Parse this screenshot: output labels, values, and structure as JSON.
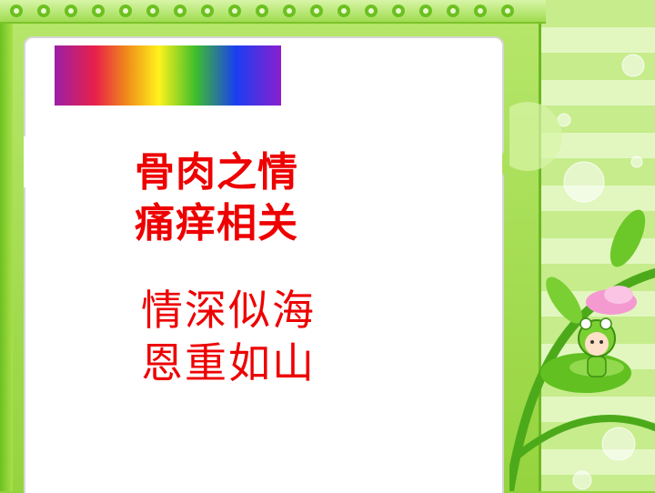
{
  "slide": {
    "heading_lines": [
      "骨肉之情",
      "痛痒相关"
    ],
    "sub_lines": [
      "情深似海",
      "恩重如山"
    ]
  },
  "colors": {
    "text": "#ee0000",
    "frame_green": "#8fd43a",
    "card": "#ffffff"
  },
  "decoration": {
    "rainbow_bar": "rainbow-gradient",
    "character": "frog-hat-girl-icon",
    "flower": "pink-flower-icon",
    "vine": "green-vine-icon",
    "bubbles": "bubble-icon"
  }
}
